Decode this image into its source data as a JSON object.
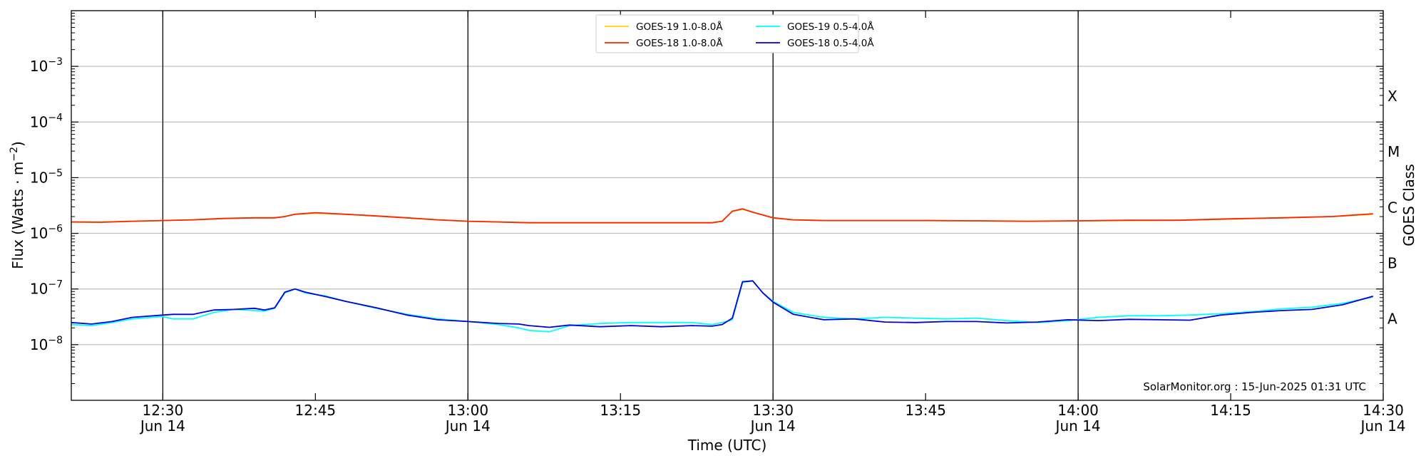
{
  "chart_data": {
    "type": "line",
    "title": "",
    "xlabel": "Time (UTC)",
    "ylabel": "Flux (Watts · m",
    "ylabel_sup": "−2",
    "ylabel_close": ")",
    "y2label": "GOES Class",
    "yscale": "log",
    "ylim": [
      1e-09,
      0.01
    ],
    "xlim": [
      "12:21",
      "14:30"
    ],
    "grid": true,
    "legend_position": "top-center",
    "credit": "SolarMonitor.org : 15-Jun-2025 01:31 UTC",
    "y_ticks": [
      {
        "value": 1e-08,
        "base": "10",
        "exp": "−8"
      },
      {
        "value": 1e-07,
        "base": "10",
        "exp": "−7"
      },
      {
        "value": 1e-06,
        "base": "10",
        "exp": "−6"
      },
      {
        "value": 1e-05,
        "base": "10",
        "exp": "−5"
      },
      {
        "value": 0.0001,
        "base": "10",
        "exp": "−4"
      },
      {
        "value": 0.001,
        "base": "10",
        "exp": "−3"
      }
    ],
    "x_ticks": [
      {
        "time": "12:30",
        "label": "12:30",
        "sublabel": "Jun 14",
        "vline": true
      },
      {
        "time": "12:45",
        "label": "12:45",
        "sublabel": "",
        "vline": false
      },
      {
        "time": "13:00",
        "label": "13:00",
        "sublabel": "Jun 14",
        "vline": true
      },
      {
        "time": "13:15",
        "label": "13:15",
        "sublabel": "",
        "vline": false
      },
      {
        "time": "13:30",
        "label": "13:30",
        "sublabel": "Jun 14",
        "vline": true
      },
      {
        "time": "13:45",
        "label": "13:45",
        "sublabel": "",
        "vline": false
      },
      {
        "time": "14:00",
        "label": "14:00",
        "sublabel": "Jun 14",
        "vline": true
      },
      {
        "time": "14:15",
        "label": "14:15",
        "sublabel": "",
        "vline": false
      },
      {
        "time": "14:30",
        "label": "14:30",
        "sublabel": "Jun 14",
        "vline": false
      }
    ],
    "class_labels": [
      {
        "label": "A",
        "value": 3e-08
      },
      {
        "label": "B",
        "value": 3e-07
      },
      {
        "label": "C",
        "value": 3e-06
      },
      {
        "label": "M",
        "value": 3e-05
      },
      {
        "label": "X",
        "value": 0.0003
      }
    ],
    "legend": [
      {
        "label": "GOES-19 1.0-8.0Å",
        "color": "#ffd700"
      },
      {
        "label": "GOES-19 0.5-4.0Å",
        "color": "#00ffff"
      },
      {
        "label": "GOES-18 1.0-8.0Å",
        "color": "#ff2200"
      },
      {
        "label": "GOES-18 0.5-4.0Å",
        "color": "#0000dd"
      }
    ],
    "series": [
      {
        "name": "GOES-19 1.0-8.0Å",
        "color": "#ffd700",
        "x": [
          "12:21",
          "12:24",
          "12:27",
          "12:30",
          "12:33",
          "12:36",
          "12:39",
          "12:41",
          "12:42",
          "12:43",
          "12:45",
          "12:48",
          "12:51",
          "12:54",
          "12:57",
          "13:00",
          "13:03",
          "13:06",
          "13:09",
          "13:12",
          "13:15",
          "13:18",
          "13:21",
          "13:24",
          "13:25",
          "13:26",
          "13:27",
          "13:28",
          "13:30",
          "13:32",
          "13:35",
          "13:40",
          "13:45",
          "13:50",
          "13:55",
          "14:00",
          "14:05",
          "14:10",
          "14:15",
          "14:20",
          "14:25",
          "14:29"
        ],
        "values": [
          1.6e-06,
          1.6e-06,
          1.65e-06,
          1.7e-06,
          1.75e-06,
          1.85e-06,
          1.9e-06,
          1.9e-06,
          2e-06,
          2.2e-06,
          2.3e-06,
          2.2e-06,
          2.05e-06,
          1.9e-06,
          1.75e-06,
          1.65e-06,
          1.6e-06,
          1.55e-06,
          1.55e-06,
          1.55e-06,
          1.55e-06,
          1.55e-06,
          1.55e-06,
          1.55e-06,
          1.65e-06,
          2.5e-06,
          2.7e-06,
          2.4e-06,
          1.9e-06,
          1.75e-06,
          1.7e-06,
          1.7e-06,
          1.7e-06,
          1.68e-06,
          1.65e-06,
          1.68e-06,
          1.7e-06,
          1.72e-06,
          1.8e-06,
          1.9e-06,
          2e-06,
          2.2e-06
        ]
      },
      {
        "name": "GOES-18 1.0-8.0Å",
        "color": "#ff2200",
        "x": [
          "12:21",
          "12:24",
          "12:27",
          "12:30",
          "12:33",
          "12:36",
          "12:39",
          "12:41",
          "12:42",
          "12:43",
          "12:45",
          "12:48",
          "12:51",
          "12:54",
          "12:57",
          "13:00",
          "13:03",
          "13:06",
          "13:09",
          "13:12",
          "13:15",
          "13:18",
          "13:21",
          "13:24",
          "13:25",
          "13:26",
          "13:27",
          "13:28",
          "13:30",
          "13:32",
          "13:35",
          "13:40",
          "13:45",
          "13:50",
          "13:55",
          "14:00",
          "14:05",
          "14:10",
          "14:15",
          "14:20",
          "14:25",
          "14:29"
        ],
        "values": [
          1.6e-06,
          1.58e-06,
          1.65e-06,
          1.7e-06,
          1.75e-06,
          1.85e-06,
          1.9e-06,
          1.9e-06,
          2e-06,
          2.2e-06,
          2.35e-06,
          2.2e-06,
          2.05e-06,
          1.9e-06,
          1.75e-06,
          1.65e-06,
          1.6e-06,
          1.55e-06,
          1.55e-06,
          1.55e-06,
          1.55e-06,
          1.55e-06,
          1.55e-06,
          1.55e-06,
          1.65e-06,
          2.5e-06,
          2.75e-06,
          2.4e-06,
          1.9e-06,
          1.75e-06,
          1.7e-06,
          1.7e-06,
          1.7e-06,
          1.68e-06,
          1.65e-06,
          1.68e-06,
          1.72e-06,
          1.72e-06,
          1.82e-06,
          1.9e-06,
          2e-06,
          2.25e-06
        ]
      },
      {
        "name": "GOES-19 0.5-4.0Å",
        "color": "#00ffff",
        "x": [
          "12:21",
          "12:23",
          "12:25",
          "12:27",
          "12:30",
          "12:31",
          "12:33",
          "12:35",
          "12:37",
          "12:39",
          "12:40",
          "12:41",
          "12:42",
          "12:43",
          "12:44",
          "12:46",
          "12:48",
          "12:51",
          "12:54",
          "12:57",
          "13:00",
          "13:03",
          "13:05",
          "13:06",
          "13:08",
          "13:10",
          "13:13",
          "13:16",
          "13:19",
          "13:22",
          "13:24",
          "13:25",
          "13:26",
          "13:27",
          "13:28",
          "13:29",
          "13:30",
          "13:32",
          "13:35",
          "13:38",
          "13:41",
          "13:44",
          "13:47",
          "13:50",
          "13:53",
          "13:56",
          "13:59",
          "14:02",
          "14:05",
          "14:08",
          "14:11",
          "14:14",
          "14:17",
          "14:20",
          "14:23",
          "14:26",
          "14:29"
        ],
        "values": [
          2.3e-08,
          2.2e-08,
          2.5e-08,
          2.9e-08,
          3.2e-08,
          2.9e-08,
          2.9e-08,
          3.8e-08,
          4.3e-08,
          4.1e-08,
          4e-08,
          4.5e-08,
          8.5e-08,
          1e-07,
          8.5e-08,
          7.5e-08,
          6e-08,
          4.5e-08,
          3.5e-08,
          2.9e-08,
          2.6e-08,
          2.3e-08,
          2e-08,
          1.8e-08,
          1.7e-08,
          2.2e-08,
          2.4e-08,
          2.5e-08,
          2.5e-08,
          2.5e-08,
          2.3e-08,
          2.5e-08,
          2.8e-08,
          1.3e-07,
          1.4e-07,
          8.5e-08,
          6e-08,
          3.8e-08,
          3.1e-08,
          2.9e-08,
          3.1e-08,
          3e-08,
          2.9e-08,
          3e-08,
          2.7e-08,
          2.5e-08,
          2.7e-08,
          3.1e-08,
          3.3e-08,
          3.3e-08,
          3.4e-08,
          3.6e-08,
          3.9e-08,
          4.4e-08,
          4.7e-08,
          5.5e-08,
          7.2e-08
        ]
      },
      {
        "name": "GOES-18 0.5-4.0Å",
        "color": "#0000dd",
        "x": [
          "12:21",
          "12:23",
          "12:25",
          "12:27",
          "12:30",
          "12:31",
          "12:33",
          "12:35",
          "12:37",
          "12:39",
          "12:40",
          "12:41",
          "12:42",
          "12:43",
          "12:44",
          "12:46",
          "12:48",
          "12:51",
          "12:54",
          "12:57",
          "13:00",
          "13:03",
          "13:05",
          "13:06",
          "13:08",
          "13:10",
          "13:13",
          "13:16",
          "13:19",
          "13:22",
          "13:24",
          "13:25",
          "13:26",
          "13:27",
          "13:28",
          "13:29",
          "13:30",
          "13:32",
          "13:35",
          "13:38",
          "13:41",
          "13:44",
          "13:47",
          "13:50",
          "13:53",
          "13:56",
          "13:59",
          "14:02",
          "14:05",
          "14:08",
          "14:11",
          "14:14",
          "14:17",
          "14:20",
          "14:23",
          "14:26",
          "14:29"
        ],
        "values": [
          2.5e-08,
          2.35e-08,
          2.6e-08,
          3.1e-08,
          3.4e-08,
          3.5e-08,
          3.5e-08,
          4.2e-08,
          4.3e-08,
          4.5e-08,
          4.2e-08,
          4.6e-08,
          8.8e-08,
          1e-07,
          8.8e-08,
          7.3e-08,
          6e-08,
          4.6e-08,
          3.4e-08,
          2.8e-08,
          2.6e-08,
          2.4e-08,
          2.35e-08,
          2.2e-08,
          2.05e-08,
          2.25e-08,
          2.1e-08,
          2.2e-08,
          2.1e-08,
          2.2e-08,
          2.15e-08,
          2.3e-08,
          3e-08,
          1.35e-07,
          1.4e-07,
          8.5e-08,
          5.8e-08,
          3.5e-08,
          2.8e-08,
          2.9e-08,
          2.55e-08,
          2.5e-08,
          2.6e-08,
          2.6e-08,
          2.45e-08,
          2.55e-08,
          2.8e-08,
          2.7e-08,
          2.85e-08,
          2.8e-08,
          2.75e-08,
          3.4e-08,
          3.8e-08,
          4.1e-08,
          4.3e-08,
          5.2e-08,
          7.4e-08
        ]
      }
    ]
  }
}
